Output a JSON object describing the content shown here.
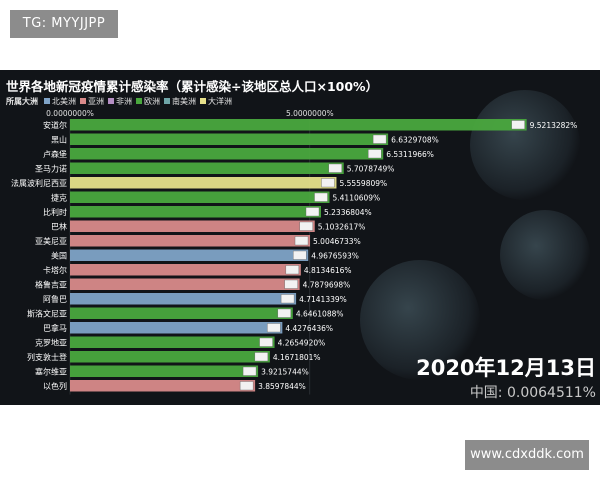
{
  "badge": {
    "text": "TG: MYYJJPP"
  },
  "watermark": {
    "text": "www.cdxddk.com"
  },
  "header": {
    "title": "世界各地新冠疫情累计感染率（累计感染÷该地区总人口×100%）",
    "legend_title": "所属大洲",
    "legend": [
      {
        "label": "北美洲",
        "color": "#7fa3c7"
      },
      {
        "label": "亚洲",
        "color": "#d98a8a"
      },
      {
        "label": "非洲",
        "color": "#b58fc4"
      },
      {
        "label": "欧洲",
        "color": "#4aa83e"
      },
      {
        "label": "南美洲",
        "color": "#6fa6a8"
      },
      {
        "label": "大洋洲",
        "color": "#e6e08a"
      }
    ]
  },
  "overlay": {
    "date": "2020年12月13日",
    "china_label": "中国: 0.0064511%"
  },
  "chart_data": {
    "type": "bar",
    "orientation": "horizontal",
    "x_ticks": [
      "0.0000000%",
      "5.0000000%"
    ],
    "xlim": [
      0,
      9.8
    ],
    "categories": [
      "安道尔",
      "黑山",
      "卢森堡",
      "圣马力诺",
      "法属波利尼西亚",
      "捷克",
      "比利时",
      "巴林",
      "亚美尼亚",
      "美国",
      "卡塔尔",
      "格鲁吉亚",
      "阿鲁巴",
      "斯洛文尼亚",
      "巴拿马",
      "克罗地亚",
      "列支敦士登",
      "塞尔维亚",
      "以色列"
    ],
    "values": [
      9.5213282,
      6.6329708,
      6.5311966,
      5.7078749,
      5.5559809,
      5.4110609,
      5.2336804,
      5.1032617,
      5.0046733,
      4.9676593,
      4.8134616,
      4.7879698,
      4.7141339,
      4.6461088,
      4.4276436,
      4.265492,
      4.1671801,
      3.9215744,
      3.8597844
    ],
    "value_labels": [
      "9.5213282%",
      "6.6329708%",
      "6.5311966%",
      "5.7078749%",
      "5.5559809%",
      "5.4110609%",
      "5.2336804%",
      "5.1032617%",
      "5.0046733%",
      "4.9676593%",
      "4.8134616%",
      "4.7879698%",
      "4.7141339%",
      "4.6461088%",
      "4.4276436%",
      "4.2654920%",
      "4.1671801%",
      "3.9215744%",
      "3.8597844%"
    ],
    "continents": [
      "欧洲",
      "欧洲",
      "欧洲",
      "欧洲",
      "大洋洲",
      "欧洲",
      "欧洲",
      "亚洲",
      "亚洲",
      "北美洲",
      "亚洲",
      "亚洲",
      "北美洲",
      "欧洲",
      "北美洲",
      "欧洲",
      "欧洲",
      "欧洲",
      "亚洲"
    ],
    "continent_colors": {
      "北美洲": "#7fa3c7",
      "亚洲": "#d98a8a",
      "非洲": "#b58fc4",
      "欧洲": "#4aa83e",
      "南美洲": "#6fa6a8",
      "大洋洲": "#e6e08a"
    }
  }
}
